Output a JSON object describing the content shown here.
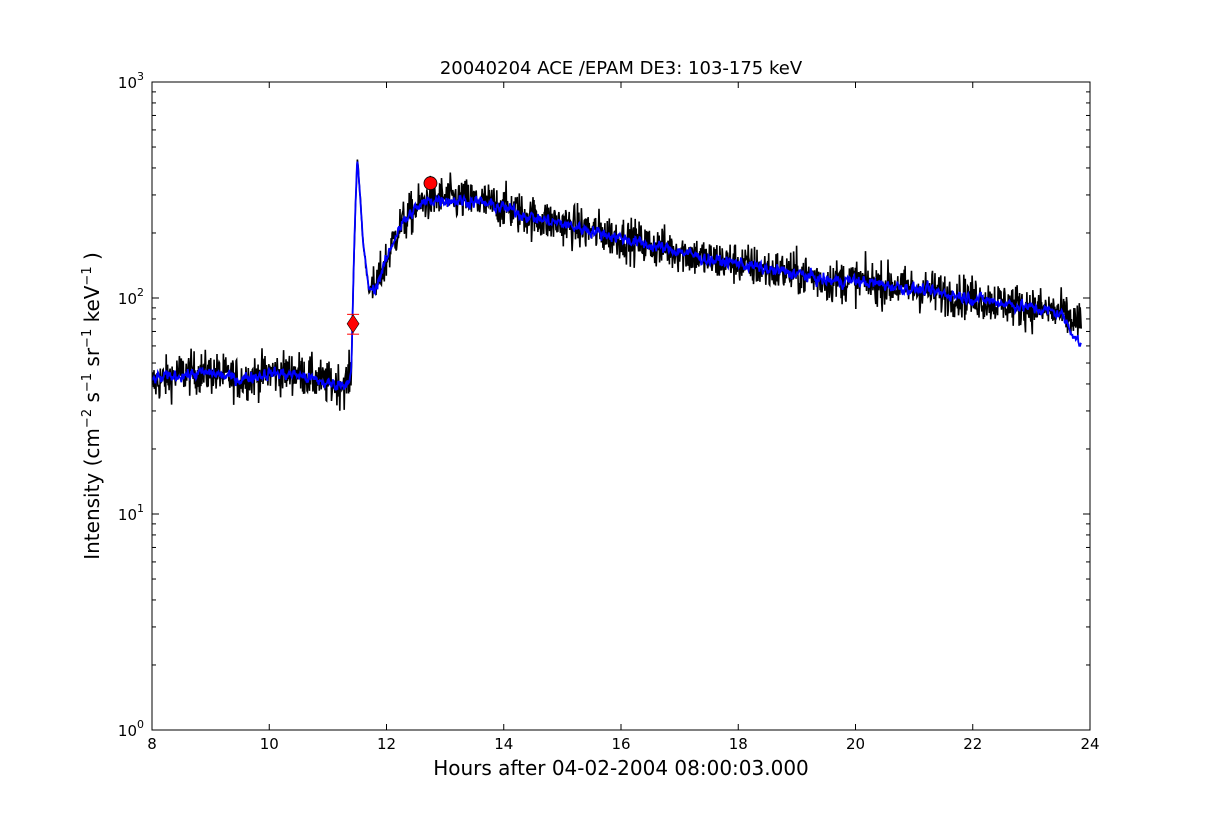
{
  "chart_data": {
    "type": "line",
    "title": "20040204 ACE /EPAM DE3: 103-175 keV",
    "xlabel": "Hours after 04-02-2004 08:00:03.000",
    "ylabel": {
      "prefix": "Intensity (cm",
      "exp1": "−2",
      "s": " s",
      "exp2": "−1",
      "sr": " sr",
      "exp3": "−1",
      "kev": " keV",
      "exp4": "−1",
      "suffix": " )"
    },
    "xlim": [
      8,
      24
    ],
    "ylim": [
      1,
      1000
    ],
    "yscale": "log",
    "x_ticks": [
      "8",
      "10",
      "12",
      "14",
      "16",
      "18",
      "20",
      "22",
      "24"
    ],
    "y_ticks": [
      {
        "base": "10",
        "exp": "0"
      },
      {
        "base": "10",
        "exp": "1"
      },
      {
        "base": "10",
        "exp": "2"
      },
      {
        "base": "10",
        "exp": "3"
      }
    ],
    "grid": false,
    "series": [
      {
        "style": "raw",
        "color": "#000000",
        "x": [
          8.0,
          8.5,
          9.0,
          9.5,
          10.0,
          10.5,
          11.0,
          11.3,
          11.4,
          11.45,
          11.5,
          11.55,
          11.6,
          11.7,
          11.8,
          12.0,
          12.2,
          12.5,
          12.75,
          13.0,
          13.5,
          14.0,
          14.5,
          15.0,
          15.5,
          16.0,
          16.5,
          17.0,
          17.5,
          18.0,
          18.5,
          19.0,
          19.5,
          20.0,
          20.5,
          21.0,
          21.5,
          22.0,
          22.5,
          23.0,
          23.5,
          23.85
        ],
        "y": [
          40,
          45,
          45,
          42,
          45,
          45,
          40,
          40,
          45,
          180,
          440,
          300,
          180,
          110,
          110,
          150,
          210,
          260,
          290,
          290,
          280,
          265,
          235,
          220,
          205,
          190,
          175,
          165,
          150,
          145,
          135,
          130,
          120,
          120,
          115,
          110,
          105,
          100,
          95,
          90,
          85,
          75
        ]
      },
      {
        "style": "smoothed",
        "color": "#0000ff",
        "x": [
          8.0,
          8.5,
          9.0,
          9.5,
          10.0,
          10.5,
          11.0,
          11.3,
          11.4,
          11.45,
          11.5,
          11.55,
          11.6,
          11.7,
          11.8,
          12.0,
          12.2,
          12.5,
          12.75,
          13.0,
          13.5,
          14.0,
          14.5,
          15.0,
          15.5,
          16.0,
          16.5,
          17.0,
          17.5,
          18.0,
          18.5,
          19.0,
          19.5,
          20.0,
          20.5,
          21.0,
          21.5,
          22.0,
          22.5,
          23.0,
          23.5,
          23.85
        ],
        "y": [
          42,
          44,
          45,
          42,
          45,
          44,
          40,
          40,
          45,
          180,
          440,
          300,
          180,
          110,
          110,
          150,
          210,
          260,
          285,
          285,
          280,
          262,
          235,
          220,
          205,
          190,
          175,
          165,
          150,
          145,
          135,
          130,
          120,
          120,
          115,
          110,
          105,
          100,
          95,
          90,
          85,
          60
        ]
      }
    ],
    "markers": [
      {
        "shape": "diamond",
        "color": "#ff0000",
        "x": 11.43,
        "y": 76,
        "yerr_low": 68,
        "yerr_high": 84
      },
      {
        "shape": "circle",
        "color": "#ff0000",
        "x": 12.75,
        "y": 340
      }
    ]
  }
}
